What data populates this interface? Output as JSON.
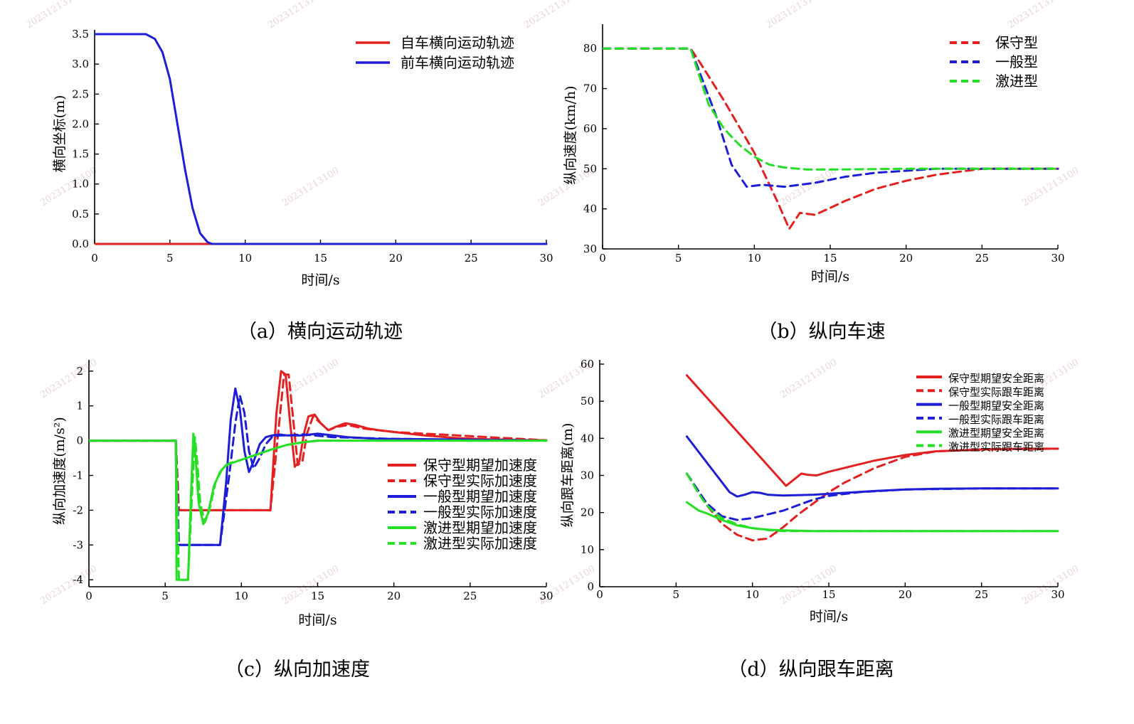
{
  "charts": [
    {
      "id": "a",
      "type": "line",
      "caption": "（a）横向运动轨迹",
      "xlabel": "时间/s",
      "ylabel": "横向坐标(m)",
      "xlim": [
        0,
        30
      ],
      "ylim": [
        0,
        3.5
      ],
      "xticks": [
        "0",
        "5",
        "10",
        "15",
        "20",
        "25",
        "30"
      ],
      "yticks": [
        "0.0",
        "0.5",
        "1.0",
        "1.5",
        "2.0",
        "2.5",
        "3.0",
        "3.5"
      ],
      "legend_position": "top-right",
      "series": [
        {
          "name": "自车横向运动轨迹",
          "color": "#e52020",
          "style": "solid",
          "x": [
            0,
            30
          ],
          "y": [
            0,
            0
          ]
        },
        {
          "name": "前车横向运动轨迹",
          "color": "#1e1ed8",
          "style": "solid",
          "x": [
            0,
            3.4,
            4.0,
            4.5,
            5.0,
            5.5,
            6.0,
            6.5,
            7.0,
            7.5,
            7.8,
            30
          ],
          "y": [
            3.5,
            3.5,
            3.42,
            3.2,
            2.75,
            2.0,
            1.25,
            0.6,
            0.18,
            0.03,
            0,
            0
          ]
        }
      ]
    },
    {
      "id": "b",
      "type": "line",
      "caption": "（b）纵向车速",
      "xlabel": "时间/s",
      "ylabel": "纵向速度(km/h)",
      "xlim": [
        0,
        30
      ],
      "ylim": [
        30,
        85
      ],
      "xticks": [
        "0",
        "5",
        "10",
        "15",
        "20",
        "25",
        "30"
      ],
      "yticks": [
        "30",
        "40",
        "50",
        "60",
        "70",
        "80"
      ],
      "legend_position": "top-right",
      "series": [
        {
          "name": "保守型",
          "color": "#e52020",
          "style": "dashed",
          "x": [
            0,
            5.8,
            6.5,
            8.0,
            10.0,
            11.5,
            12.3,
            13.0,
            14.0,
            16.0,
            18.0,
            20.0,
            22.0,
            24.0,
            25.0,
            27.0,
            30.0
          ],
          "y": [
            80,
            80,
            76,
            67,
            54,
            42,
            35,
            39,
            38.5,
            42,
            45,
            47,
            48.5,
            49.5,
            50,
            50,
            50
          ]
        },
        {
          "name": "一般型",
          "color": "#1e1ed8",
          "style": "dashed",
          "x": [
            0,
            5.8,
            6.5,
            7.5,
            8.5,
            9.5,
            10.5,
            12.0,
            14.0,
            16.0,
            18.0,
            20.0,
            22.0,
            30.0
          ],
          "y": [
            80,
            80,
            73,
            63,
            51,
            45.5,
            46,
            45.5,
            46.5,
            48,
            49,
            49.5,
            50,
            50
          ]
        },
        {
          "name": "激进型",
          "color": "#26e026",
          "style": "dashed",
          "x": [
            0,
            5.8,
            6.3,
            7.0,
            8.0,
            9.0,
            10.0,
            11.0,
            12.0,
            13.5,
            15.0,
            20.0,
            30.0
          ],
          "y": [
            80,
            80,
            74,
            66,
            60,
            56,
            53,
            51,
            50.3,
            49.8,
            49.8,
            50,
            50
          ]
        }
      ]
    },
    {
      "id": "c",
      "type": "line",
      "caption": "（c）纵向加速度",
      "xlabel": "时间/s",
      "ylabel": "纵向加速度(m/s²)",
      "xlim": [
        0,
        30
      ],
      "ylim": [
        -4.2,
        2.2
      ],
      "xticks": [
        "0",
        "5",
        "10",
        "15",
        "20",
        "25",
        "30"
      ],
      "yticks": [
        "2",
        "1",
        "0",
        "-1",
        "-2",
        "-3",
        "-4"
      ],
      "legend_position": "center-right",
      "series": [
        {
          "name": "保守型期望加速度",
          "color": "#e52020",
          "style": "solid",
          "x": [
            0,
            5.7,
            5.75,
            11.9,
            12.3,
            12.6,
            12.9,
            13.2,
            13.5,
            13.8,
            14.1,
            14.4,
            14.8,
            15.2,
            15.7,
            16.2,
            16.8,
            17.5,
            18.3,
            19.0,
            20.0,
            22.0,
            24.0,
            26.0,
            28.0,
            30.0
          ],
          "y": [
            0,
            0,
            -2,
            -2,
            0.8,
            2.0,
            1.9,
            0.5,
            -0.75,
            -0.6,
            0.2,
            0.7,
            0.75,
            0.5,
            0.3,
            0.4,
            0.5,
            0.45,
            0.35,
            0.3,
            0.25,
            0.15,
            0.08,
            0.04,
            0.02,
            0.01
          ]
        },
        {
          "name": "保守型实际加速度",
          "color": "#e52020",
          "style": "dashed",
          "x": [
            0,
            5.7,
            5.9,
            11.9,
            12.5,
            12.8,
            13.1,
            13.4,
            13.7,
            14.0,
            14.3,
            14.7,
            15.2,
            15.7,
            16.3,
            17.0,
            18.0,
            20.0,
            30.0
          ],
          "y": [
            0,
            0,
            -2,
            -2,
            0.6,
            1.9,
            1.9,
            0.6,
            -0.7,
            -0.6,
            0.2,
            0.7,
            0.5,
            0.3,
            0.4,
            0.45,
            0.35,
            0.25,
            0.01
          ]
        },
        {
          "name": "一般型期望加速度",
          "color": "#1e1ed8",
          "style": "solid",
          "x": [
            0,
            5.7,
            5.75,
            8.6,
            9.0,
            9.3,
            9.6,
            9.9,
            10.2,
            10.5,
            10.8,
            11.2,
            11.6,
            12.0,
            12.5,
            13.0,
            14.0,
            15.0,
            17.0,
            19.0,
            20.0,
            30.0
          ],
          "y": [
            0,
            0,
            -3,
            -3,
            -1.2,
            0.6,
            1.5,
            0.9,
            -0.3,
            -0.9,
            -0.6,
            -0.1,
            0.1,
            0.15,
            0.18,
            0.15,
            0.15,
            0.2,
            0.1,
            0.05,
            0.05,
            0.0
          ]
        },
        {
          "name": "一般型实际加速度",
          "color": "#1e1ed8",
          "style": "dashed",
          "x": [
            0,
            5.7,
            5.9,
            8.6,
            9.2,
            9.6,
            9.9,
            10.2,
            10.5,
            10.8,
            11.2,
            11.6,
            12.0,
            12.5,
            13.0,
            14.0,
            16.0,
            20.0,
            30.0
          ],
          "y": [
            0,
            0,
            -3,
            -3,
            -1.0,
            0.5,
            1.3,
            0.8,
            -0.3,
            -0.8,
            -0.5,
            -0.1,
            0.1,
            0.15,
            0.15,
            0.18,
            0.1,
            0.05,
            0.0
          ]
        },
        {
          "name": "激进型期望加速度",
          "color": "#26e026",
          "style": "solid",
          "x": [
            0,
            5.7,
            5.75,
            6.5,
            6.7,
            6.85,
            7.0,
            7.2,
            7.5,
            7.8,
            8.2,
            8.6,
            9.0,
            10.0,
            11.0,
            12.0,
            13.0,
            14.0,
            15.0,
            17.0,
            20.0,
            30.0
          ],
          "y": [
            0,
            0,
            -4,
            -4,
            -1.5,
            0.2,
            -0.5,
            -1.8,
            -2.4,
            -2.1,
            -1.3,
            -0.9,
            -0.7,
            -0.55,
            -0.4,
            -0.25,
            -0.12,
            -0.05,
            0,
            0,
            0,
            0
          ]
        },
        {
          "name": "激进型实际加速度",
          "color": "#26e026",
          "style": "dashed",
          "x": [
            0,
            5.7,
            5.9,
            6.5,
            6.8,
            6.95,
            7.1,
            7.3,
            7.6,
            7.9,
            8.3,
            8.7,
            9.2,
            10.0,
            11.0,
            12.0,
            13.0,
            14.0,
            15.0,
            30.0
          ],
          "y": [
            0,
            0,
            -4,
            -4,
            -1.2,
            0.1,
            -0.6,
            -1.8,
            -2.35,
            -2.0,
            -1.2,
            -0.85,
            -0.65,
            -0.55,
            -0.4,
            -0.25,
            -0.12,
            -0.05,
            0,
            0
          ]
        }
      ]
    },
    {
      "id": "d",
      "type": "line",
      "caption": "（d）纵向跟车距离",
      "xlabel": "时间/s",
      "ylabel": "纵向跟车距离(m)",
      "xlim": [
        0,
        30
      ],
      "ylim": [
        0,
        60
      ],
      "xticks": [
        "0",
        "5",
        "10",
        "15",
        "20",
        "25",
        "30"
      ],
      "yticks": [
        "0",
        "10",
        "20",
        "30",
        "40",
        "50",
        "60"
      ],
      "legend_position": "top-right",
      "series": [
        {
          "name": "保守型期望安全距离",
          "color": "#e52020",
          "style": "solid",
          "x": [
            5.7,
            12.2,
            12.6,
            13.2,
            13.6,
            14.2,
            15.0,
            16.0,
            18.0,
            20.0,
            22.0,
            25.0,
            28.0,
            30.0
          ],
          "y": [
            57,
            27.2,
            28.5,
            30.5,
            30.2,
            30,
            31,
            32,
            34,
            35.5,
            36.5,
            37,
            37.2,
            37.2
          ]
        },
        {
          "name": "保守型实际跟车距离",
          "color": "#e52020",
          "style": "dashed",
          "x": [
            5.7,
            7.0,
            8.0,
            9.0,
            10.0,
            11.0,
            12.0,
            13.0,
            14.0,
            15.0,
            16.0,
            18.0,
            20.0,
            22.0,
            25.0,
            30.0
          ],
          "y": [
            30.5,
            22,
            17,
            14,
            12.5,
            13,
            16,
            19.5,
            22.5,
            25.5,
            28,
            32,
            35,
            36.5,
            37,
            37.2
          ]
        },
        {
          "name": "一般型期望安全距离",
          "color": "#1e1ed8",
          "style": "solid",
          "x": [
            5.7,
            8.5,
            9.0,
            9.5,
            10.0,
            10.5,
            11.0,
            12.0,
            14.0,
            16.0,
            18.0,
            20.0,
            22.0,
            25.0,
            30.0
          ],
          "y": [
            40.5,
            25.5,
            24.3,
            24.8,
            25.5,
            25.3,
            24.8,
            24.6,
            24.8,
            25.3,
            25.8,
            26.2,
            26.4,
            26.5,
            26.5
          ]
        },
        {
          "name": "一般型实际跟车距离",
          "color": "#1e1ed8",
          "style": "dashed",
          "x": [
            5.7,
            7.0,
            8.0,
            9.0,
            10.0,
            11.0,
            12.0,
            13.0,
            14.0,
            15.0,
            17.0,
            20.0,
            25.0,
            30.0
          ],
          "y": [
            30.5,
            22.5,
            19,
            18,
            18.5,
            19.5,
            20.5,
            22,
            23.5,
            24.5,
            25.5,
            26.2,
            26.5,
            26.5
          ]
        },
        {
          "name": "激进型期望安全距离",
          "color": "#26e026",
          "style": "solid",
          "x": [
            5.7,
            6.5,
            7.0,
            8.0,
            9.0,
            10.0,
            11.0,
            12.0,
            14.0,
            16.0,
            20.0,
            25.0,
            30.0
          ],
          "y": [
            22.8,
            20.5,
            19.8,
            18,
            16.5,
            15.8,
            15.4,
            15.2,
            15,
            15,
            15,
            15,
            15
          ]
        },
        {
          "name": "激进型实际跟车距离",
          "color": "#26e026",
          "style": "dashed",
          "x": [
            5.7,
            6.5,
            7.0,
            7.5,
            8.0,
            9.0,
            10.0,
            11.0,
            12.0,
            14.0,
            16.0,
            20.0,
            25.0,
            30.0
          ],
          "y": [
            30.5,
            25,
            22,
            20,
            18.5,
            16.8,
            15.8,
            15.3,
            15,
            15,
            15,
            15,
            15,
            15
          ]
        }
      ]
    }
  ],
  "watermark": "20231213100"
}
